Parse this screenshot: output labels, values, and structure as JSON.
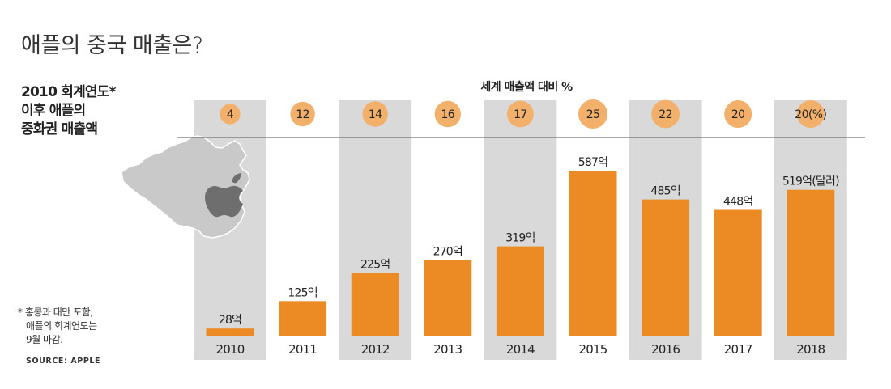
{
  "header": {
    "title": "애플의 중국 매출은?",
    "subtitle_lines": [
      "2010 회계연도*",
      "이후 애플의",
      "중화권 매출액"
    ]
  },
  "footnote": {
    "lines": [
      "* 홍콩과 대만 포함,",
      "애플의 회계연도는",
      "9월 마감."
    ],
    "source": "SOURCE: APPLE"
  },
  "colors": {
    "bar": "#ec8b23",
    "circle": "#f2b06a",
    "band": "#d9d9d9",
    "rule": "#555555"
  },
  "chart_data": {
    "type": "bar",
    "categories": [
      "2010",
      "2011",
      "2012",
      "2013",
      "2014",
      "2015",
      "2016",
      "2017",
      "2018"
    ],
    "values": [
      28,
      125,
      225,
      270,
      319,
      587,
      485,
      448,
      519
    ],
    "value_labels": [
      "28억",
      "125억",
      "225억",
      "270억",
      "319억",
      "587억",
      "485억",
      "448억",
      "519억(달러)"
    ],
    "unit": "억 달러",
    "share_of_global_sales": {
      "title": "세계 매출액 대비 %",
      "values": [
        4,
        12,
        14,
        16,
        17,
        25,
        22,
        20,
        20
      ],
      "labels": [
        "4",
        "12",
        "14",
        "16",
        "17",
        "25",
        "22",
        "20",
        "20(%)"
      ]
    },
    "ylim": [
      0,
      600
    ],
    "shaded_bands": [
      "2010",
      "2012",
      "2014",
      "2016",
      "2018"
    ],
    "grid": false
  }
}
